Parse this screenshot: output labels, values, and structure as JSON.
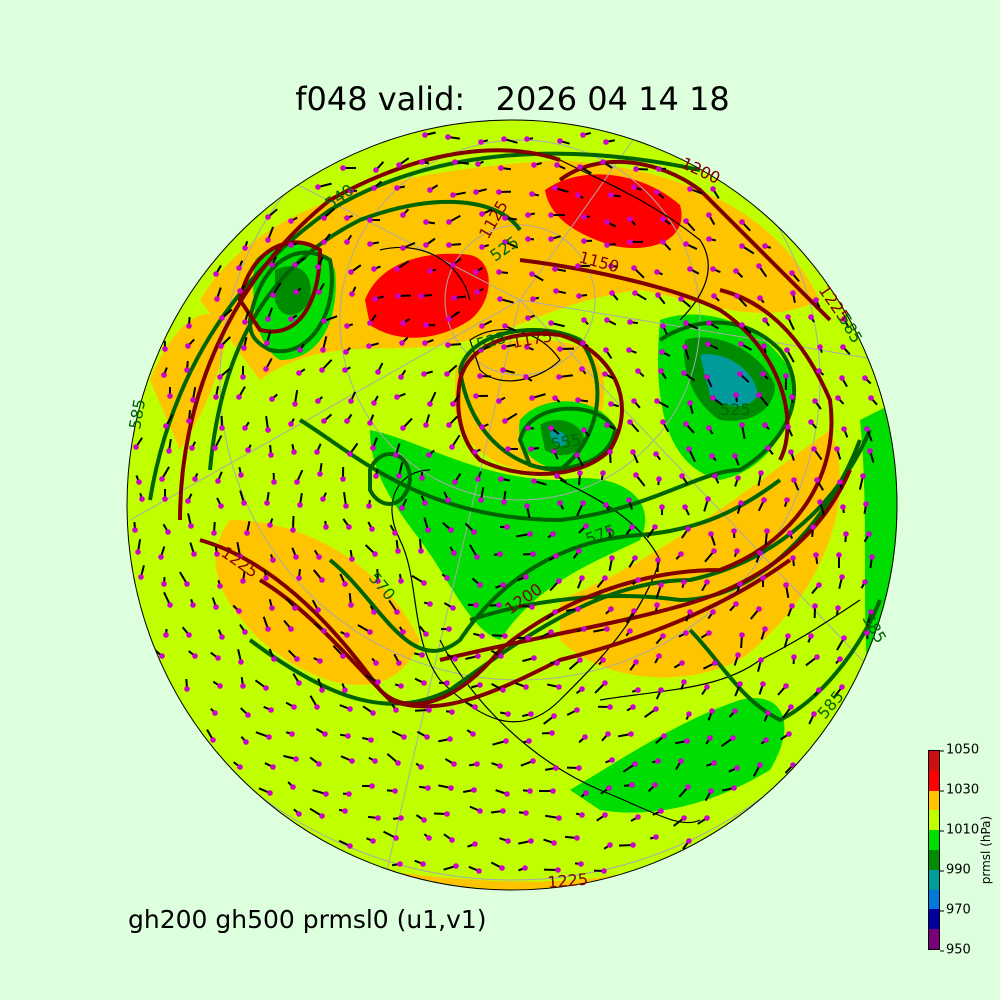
{
  "title": "f048 valid:   2026 04 14 18",
  "subtitle": "gh200 gh500 prmsl0 (u1,v1)",
  "colorbar": {
    "label": "prmsl (hPa)",
    "ticks": [
      "950",
      "970",
      "990",
      "1010",
      "1030",
      "1050"
    ],
    "levels": [
      950,
      960,
      970,
      980,
      990,
      1000,
      1010,
      1020,
      1030,
      1040,
      1050
    ],
    "colors": [
      "#780078",
      "#0000a0",
      "#0078dc",
      "#009c9c",
      "#008c00",
      "#00dd00",
      "#bfff00",
      "#ffc400",
      "#ff0000",
      "#cc1010"
    ]
  },
  "colors": {
    "background": "#ddffdd",
    "gh200": "#800000",
    "gh500": "#006400",
    "wind_barb": "#000000",
    "wind_dot": "#cc00cc"
  },
  "contour_labels": {
    "gh200": [
      "1200",
      "1225",
      "1150",
      "1125",
      "1175",
      "1200",
      "1225",
      "1225"
    ],
    "gh500": [
      "540",
      "525",
      "525",
      "585",
      "570",
      "525",
      "555",
      "585",
      "585",
      "585",
      "575"
    ]
  }
}
